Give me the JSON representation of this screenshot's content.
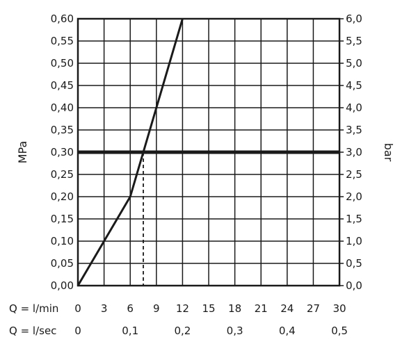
{
  "chart_data": {
    "type": "line",
    "y_left": {
      "label": "MPa",
      "ticks": [
        "0,00",
        "0,05",
        "0,10",
        "0,15",
        "0,20",
        "0,25",
        "0,30",
        "0,35",
        "0,40",
        "0,45",
        "0,50",
        "0,55",
        "0,60"
      ],
      "range": [
        0,
        0.6
      ]
    },
    "y_right": {
      "label": "bar",
      "ticks": [
        "0,0",
        "0,5",
        "1,0",
        "1,5",
        "2,0",
        "2,5",
        "3,0",
        "3,5",
        "4,0",
        "4,5",
        "5,0",
        "5,5",
        "6,0"
      ],
      "range": [
        0,
        6
      ]
    },
    "x_lpm": {
      "label": "Q = l/min",
      "ticks": [
        "0",
        "3",
        "6",
        "9",
        "12",
        "15",
        "18",
        "21",
        "24",
        "27",
        "30"
      ],
      "range": [
        0,
        30
      ]
    },
    "x_lps": {
      "label": "Q = l/sec",
      "ticks": [
        "0",
        "0,1",
        "0,2",
        "0,3",
        "0,4",
        "0,5"
      ],
      "tick_values": [
        0,
        0.1,
        0.2,
        0.3,
        0.4,
        0.5
      ]
    },
    "series": [
      {
        "x": [
          0,
          3,
          6,
          7.5,
          9,
          12
        ],
        "y": [
          0,
          0.1,
          0.2,
          0.3,
          0.4,
          0.6
        ]
      }
    ],
    "reference_line_y": 0.3,
    "dashed_marker_x": 7.5,
    "grid": true
  }
}
